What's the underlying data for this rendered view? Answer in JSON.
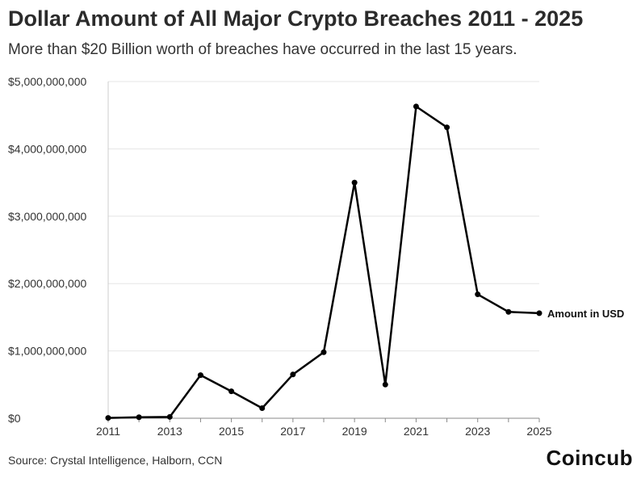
{
  "title": "Dollar Amount of All Major Crypto Breaches 2011 - 2025",
  "subtitle": "More than $20 Billion worth of breaches have occurred in the last 15 years.",
  "source": "Source: Crystal Intelligence, Halborn, CCN",
  "brand": "Coincub",
  "chart_data": {
    "type": "line",
    "title": "Dollar Amount of All Major Crypto Breaches 2011 - 2025",
    "xlabel": "",
    "ylabel": "",
    "x": [
      2011,
      2012,
      2013,
      2014,
      2015,
      2016,
      2017,
      2018,
      2019,
      2020,
      2021,
      2022,
      2023,
      2024,
      2025
    ],
    "series": [
      {
        "name": "Amount in USD",
        "values": [
          5000000,
          15000000,
          20000000,
          640000000,
          400000000,
          150000000,
          650000000,
          980000000,
          3500000000,
          500000000,
          4630000000,
          4320000000,
          1840000000,
          1580000000,
          1560000000
        ]
      }
    ],
    "xticks": [
      "2011",
      "2013",
      "2015",
      "2017",
      "2019",
      "2021",
      "2023",
      "2025"
    ],
    "yticks": [
      0,
      1000000000,
      2000000000,
      3000000000,
      4000000000,
      5000000000
    ],
    "ytick_labels": [
      "$0",
      "$1,000,000,000",
      "$2,000,000,000",
      "$3,000,000,000",
      "$4,000,000,000",
      "$5,000,000,000"
    ],
    "ylim": [
      0,
      5000000000
    ],
    "xlim": [
      2011,
      2025
    ],
    "grid": true,
    "legend": "end-label-right",
    "line_color": "#000000",
    "grid_color": "#e6e6e6"
  }
}
